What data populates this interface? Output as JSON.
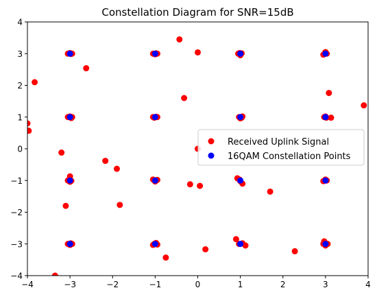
{
  "chart_data": {
    "type": "scatter",
    "title": "Constellation Diagram for SNR=15dB",
    "xlabel": "",
    "ylabel": "",
    "xlim": [
      -4,
      4
    ],
    "ylim": [
      -4,
      4
    ],
    "xticks": [
      -4,
      -3,
      -2,
      -1,
      0,
      1,
      2,
      3,
      4
    ],
    "yticks": [
      -4,
      -3,
      -2,
      -1,
      0,
      1,
      2,
      3,
      4
    ],
    "xtick_labels": [
      "−4",
      "−3",
      "−2",
      "−1",
      "0",
      "1",
      "2",
      "3",
      "4"
    ],
    "ytick_labels": [
      "−4",
      "−3",
      "−2",
      "−1",
      "0",
      "1",
      "2",
      "3",
      "4"
    ],
    "grid": false,
    "legend": {
      "placement": "center-right",
      "entries": [
        "Received Uplink Signal",
        "16QAM Constellation Points"
      ]
    },
    "series": [
      {
        "name": "Received Uplink Signal",
        "color": "#ff0000",
        "points": [
          [
            -3.05,
            3.0
          ],
          [
            -2.98,
            2.99
          ],
          [
            -3.0,
            3.02
          ],
          [
            -2.95,
            3.0
          ],
          [
            -1.05,
            3.0
          ],
          [
            -0.98,
            3.01
          ],
          [
            -1.0,
            2.98
          ],
          [
            -0.95,
            3.0
          ],
          [
            0.95,
            3.0
          ],
          [
            1.0,
            2.95
          ],
          [
            1.03,
            3.01
          ],
          [
            0.98,
            3.02
          ],
          [
            2.95,
            2.97
          ],
          [
            3.0,
            3.05
          ],
          [
            3.03,
            3.0
          ],
          [
            2.98,
            3.01
          ],
          [
            -0.43,
            3.45
          ],
          [
            0.0,
            3.04
          ],
          [
            -2.62,
            2.54
          ],
          [
            -3.83,
            2.1
          ],
          [
            -0.32,
            1.6
          ],
          [
            3.08,
            1.76
          ],
          [
            3.9,
            1.37
          ],
          [
            -3.05,
            1.0
          ],
          [
            -2.97,
            0.97
          ],
          [
            -3.0,
            1.02
          ],
          [
            -2.95,
            1.0
          ],
          [
            -1.05,
            1.0
          ],
          [
            -0.98,
            1.01
          ],
          [
            -1.02,
            0.98
          ],
          [
            -0.95,
            1.0
          ],
          [
            0.97,
            1.0
          ],
          [
            1.05,
            1.02
          ],
          [
            1.0,
            0.96
          ],
          [
            1.03,
            0.98
          ],
          [
            2.97,
            1.0
          ],
          [
            3.02,
            0.98
          ],
          [
            3.0,
            1.02
          ],
          [
            3.13,
            0.98
          ],
          [
            -4.0,
            0.8
          ],
          [
            -3.97,
            0.57
          ],
          [
            -3.2,
            -0.12
          ],
          [
            0.0,
            0.0
          ],
          [
            -2.17,
            -0.38
          ],
          [
            -1.9,
            -0.63
          ],
          [
            -3.05,
            -1.0
          ],
          [
            -3.0,
            -0.87
          ],
          [
            -2.97,
            -1.01
          ],
          [
            -3.0,
            -1.04
          ],
          [
            -1.05,
            -0.97
          ],
          [
            -0.98,
            -1.0
          ],
          [
            -1.0,
            -1.03
          ],
          [
            -0.95,
            -0.98
          ],
          [
            0.93,
            -0.93
          ],
          [
            0.98,
            -0.97
          ],
          [
            1.05,
            -1.1
          ],
          [
            1.0,
            -1.02
          ],
          [
            2.95,
            -1.02
          ],
          [
            3.0,
            -0.97
          ],
          [
            3.03,
            -1.0
          ],
          [
            2.98,
            -1.01
          ],
          [
            -0.18,
            -1.12
          ],
          [
            0.05,
            -1.17
          ],
          [
            1.7,
            -1.35
          ],
          [
            -3.1,
            -1.8
          ],
          [
            -1.83,
            -1.77
          ],
          [
            -3.05,
            -3.0
          ],
          [
            -2.98,
            -2.98
          ],
          [
            -3.0,
            -3.03
          ],
          [
            -2.95,
            -3.0
          ],
          [
            -1.05,
            -3.03
          ],
          [
            -0.98,
            -2.97
          ],
          [
            -1.02,
            -3.0
          ],
          [
            -0.95,
            -3.02
          ],
          [
            0.9,
            -2.85
          ],
          [
            0.97,
            -3.0
          ],
          [
            1.05,
            -2.98
          ],
          [
            1.12,
            -3.05
          ],
          [
            2.97,
            -2.92
          ],
          [
            3.0,
            -3.05
          ],
          [
            3.05,
            -3.0
          ],
          [
            2.95,
            -3.0
          ],
          [
            0.18,
            -3.17
          ],
          [
            -0.75,
            -3.43
          ],
          [
            2.28,
            -3.23
          ],
          [
            -3.35,
            -4.0
          ]
        ]
      },
      {
        "name": "16QAM Constellation Points",
        "color": "#0000ff",
        "points": [
          [
            -3,
            3
          ],
          [
            -1,
            3
          ],
          [
            1,
            3
          ],
          [
            3,
            3
          ],
          [
            -3,
            1
          ],
          [
            -1,
            1
          ],
          [
            1,
            1
          ],
          [
            3,
            1
          ],
          [
            -3,
            -1
          ],
          [
            -1,
            -1
          ],
          [
            1,
            -1
          ],
          [
            3,
            -1
          ],
          [
            -3,
            -3
          ],
          [
            -1,
            -3
          ],
          [
            1,
            -3
          ],
          [
            3,
            -3
          ]
        ]
      }
    ]
  }
}
